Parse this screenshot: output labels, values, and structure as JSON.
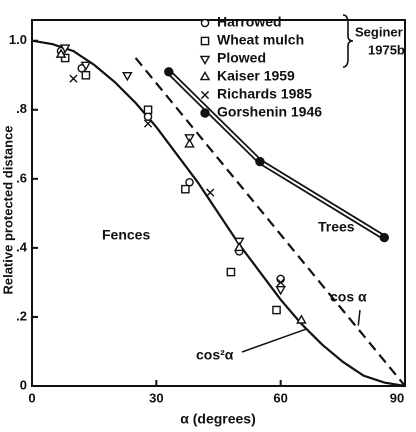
{
  "chart_data": {
    "type": "scatter",
    "x_label": "α (degrees)",
    "y_label": "Relative protected distance",
    "xlim": [
      0,
      90
    ],
    "ylim": [
      0,
      1.06
    ],
    "xticks": [
      0,
      30,
      60,
      90
    ],
    "yticks": [
      0,
      {
        "value": 0.2,
        "label": ".2"
      },
      {
        "value": 0.4,
        "label": ".4"
      },
      {
        "value": 0.6,
        "label": ".6"
      },
      {
        "value": 0.8,
        "label": ".8"
      },
      {
        "value": 1.0,
        "label": "1.0"
      }
    ],
    "series": [
      {
        "name": "Harrowed",
        "marker": "circle",
        "color": "#111111",
        "x": [
          7,
          12,
          28,
          38,
          50,
          60
        ],
        "values": [
          0.97,
          0.92,
          0.78,
          0.59,
          0.39,
          0.31
        ]
      },
      {
        "name": "Wheat mulch",
        "marker": "square",
        "color": "#111111",
        "x": [
          8,
          13,
          28,
          37,
          48,
          59
        ],
        "values": [
          0.95,
          0.9,
          0.8,
          0.57,
          0.33,
          0.22
        ]
      },
      {
        "name": "Plowed",
        "marker": "triangle-down",
        "color": "#111111",
        "x": [
          8,
          13,
          23,
          38,
          50,
          60
        ],
        "values": [
          0.98,
          0.93,
          0.9,
          0.72,
          0.42,
          0.28
        ]
      },
      {
        "name": "Kaiser  1959",
        "marker": "triangle-up",
        "color": "#111111",
        "x": [
          7,
          38,
          50,
          65
        ],
        "values": [
          0.96,
          0.7,
          0.4,
          0.19
        ]
      },
      {
        "name": "Richards  1985",
        "marker": "x",
        "color": "#111111",
        "x": [
          10,
          28,
          43,
          60
        ],
        "values": [
          0.89,
          0.76,
          0.56,
          0.3
        ]
      },
      {
        "name": "Gorshenin  1946",
        "marker": "filled-circle",
        "color": "#111111",
        "line": "double",
        "line_label": "Trees",
        "x": [
          33,
          55,
          85
        ],
        "values": [
          0.91,
          0.65,
          0.43
        ]
      }
    ],
    "legend_group": {
      "label": [
        "Seginer",
        "1975b"
      ],
      "members": [
        0,
        1,
        2
      ]
    },
    "curves": [
      {
        "label": "Fences",
        "formula": "cos²α",
        "style": "solid",
        "x": [
          0,
          5,
          10,
          15,
          20,
          25,
          30,
          35,
          40,
          45,
          50,
          55,
          60,
          65,
          70,
          75,
          80,
          85,
          90
        ],
        "values": [
          1.0,
          0.99,
          0.97,
          0.93,
          0.88,
          0.82,
          0.75,
          0.67,
          0.59,
          0.5,
          0.41,
          0.33,
          0.25,
          0.18,
          0.12,
          0.07,
          0.03,
          0.01,
          0
        ]
      },
      {
        "label": "cos α",
        "style": "dashed",
        "x": [
          25,
          90
        ],
        "values": [
          0.95,
          0
        ]
      }
    ],
    "legend": "upper right",
    "grid": false
  }
}
